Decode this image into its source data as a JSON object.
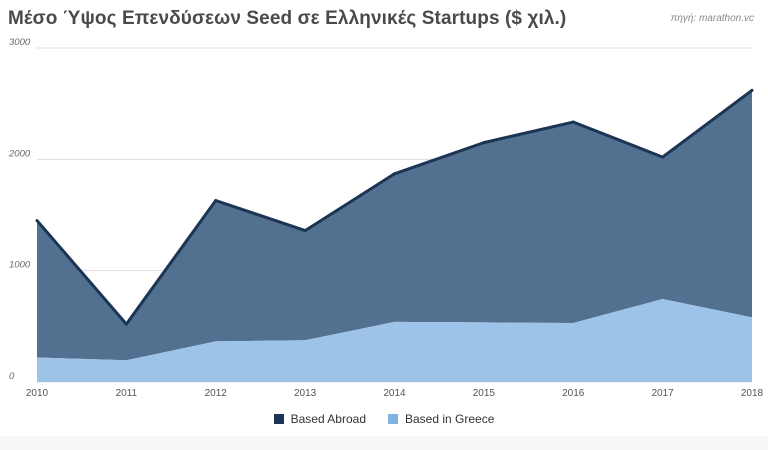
{
  "title": "Μέσο Ύψος Επενδύσεων Seed σε Ελληνικές Startups ($ χιλ.)",
  "source": "πηγή: marathon.vc",
  "colors": {
    "abroad_fill": "#52708f",
    "abroad_line": "#1c3554",
    "greece_fill": "#9ec3e9",
    "gridline": "#dddddd",
    "legend_abroad": "#1c3554",
    "legend_greece": "#7fb2e5"
  },
  "chart_data": {
    "type": "area",
    "stacked": true,
    "title": "Μέσο Ύψος Επενδύσεων Seed σε Ελληνικές Startups ($ χιλ.)",
    "x": [
      "2010",
      "2011",
      "2012",
      "2013",
      "2014",
      "2015",
      "2016",
      "2017",
      "2018"
    ],
    "series": [
      {
        "name": "Based in Greece",
        "values": [
          220,
          195,
          365,
          375,
          540,
          535,
          530,
          745,
          580
        ]
      },
      {
        "name": "Based Abroad",
        "values": [
          1230,
          325,
          1265,
          985,
          1330,
          1615,
          1805,
          1275,
          2040
        ]
      }
    ],
    "totals": [
      1450,
      520,
      1630,
      1360,
      1870,
      2150,
      2335,
      2020,
      2620
    ],
    "ylim": [
      0,
      3000
    ],
    "yticks": [
      "0",
      "1000",
      "2000",
      "3000"
    ],
    "grid": true,
    "legend_position": "bottom-center"
  },
  "legend": {
    "items": [
      {
        "label": "Based Abroad"
      },
      {
        "label": "Based in Greece"
      }
    ]
  }
}
